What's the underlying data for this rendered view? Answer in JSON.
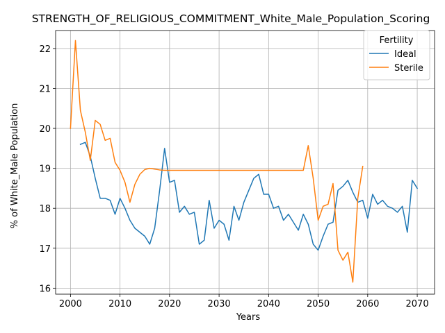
{
  "chart_data": {
    "type": "line",
    "title": "STRENGTH_OF_RELIGIOUS_COMMITMENT_White_Male_Population_Scoring",
    "xlabel": "Years",
    "ylabel": "% of White_Male Population",
    "xlim": [
      1997,
      2073.5
    ],
    "ylim": [
      15.85,
      22.45
    ],
    "xticks": [
      2000,
      2010,
      2020,
      2030,
      2040,
      2050,
      2060,
      2070
    ],
    "yticks": [
      16,
      17,
      18,
      19,
      20,
      21,
      22
    ],
    "grid": true,
    "legend": {
      "title": "Fertility",
      "position": "top-right"
    },
    "series": [
      {
        "name": "Ideal",
        "color": "#1f77b4",
        "x": [
          2002,
          2003,
          2004,
          2005,
          2006,
          2007,
          2008,
          2009,
          2010,
          2011,
          2012,
          2013,
          2014,
          2015,
          2016,
          2017,
          2018,
          2019,
          2020,
          2021,
          2022,
          2023,
          2024,
          2025,
          2026,
          2027,
          2028,
          2029,
          2030,
          2031,
          2032,
          2033,
          2034,
          2035,
          2036,
          2037,
          2038,
          2039,
          2040,
          2041,
          2042,
          2043,
          2044,
          2045,
          2046,
          2047,
          2048,
          2049,
          2050,
          2051,
          2052,
          2053,
          2054,
          2055,
          2056,
          2057,
          2058,
          2059,
          2060,
          2061,
          2062,
          2063,
          2064,
          2065,
          2066,
          2067,
          2068,
          2069,
          2070
        ],
        "y": [
          19.6,
          19.65,
          19.3,
          18.75,
          18.25,
          18.25,
          18.2,
          17.85,
          18.25,
          18.0,
          17.7,
          17.5,
          17.4,
          17.3,
          17.1,
          17.5,
          18.45,
          19.5,
          18.65,
          18.7,
          17.9,
          18.05,
          17.85,
          17.9,
          17.1,
          17.2,
          18.2,
          17.5,
          17.7,
          17.6,
          17.2,
          18.05,
          17.7,
          18.15,
          18.45,
          18.75,
          18.85,
          18.35,
          18.35,
          18.0,
          18.05,
          17.7,
          17.85,
          17.65,
          17.45,
          17.85,
          17.6,
          17.1,
          16.95,
          17.3,
          17.6,
          17.65,
          18.45,
          18.55,
          18.7,
          18.4,
          18.15,
          18.2,
          17.75,
          18.35,
          18.1,
          18.2,
          18.05,
          18.0,
          17.9,
          18.05,
          17.4,
          18.7,
          18.5
        ]
      },
      {
        "name": "Sterile",
        "color": "#ff7f0e",
        "x": [
          2000,
          2001,
          2002,
          2003,
          2004,
          2005,
          2006,
          2007,
          2008,
          2009,
          2010,
          2011,
          2012,
          2013,
          2014,
          2015,
          2016,
          2017,
          2018,
          2019,
          2020,
          2021,
          2022,
          2023,
          2024,
          2025,
          2026,
          2027,
          2028,
          2029,
          2030,
          2031,
          2032,
          2033,
          2034,
          2035,
          2036,
          2037,
          2038,
          2039,
          2040,
          2041,
          2042,
          2043,
          2044,
          2045,
          2046,
          2047,
          2048,
          2049,
          2050,
          2051,
          2052,
          2053,
          2054,
          2055,
          2056,
          2057,
          2058,
          2059
        ],
        "y": [
          20.0,
          22.2,
          20.45,
          19.9,
          19.2,
          20.2,
          20.1,
          19.7,
          19.75,
          19.15,
          18.95,
          18.65,
          18.15,
          18.6,
          18.85,
          18.97,
          19.0,
          18.98,
          18.96,
          18.95,
          18.95,
          18.95,
          18.95,
          18.95,
          18.95,
          18.95,
          18.95,
          18.95,
          18.95,
          18.95,
          18.95,
          18.95,
          18.95,
          18.95,
          18.95,
          18.95,
          18.95,
          18.95,
          18.95,
          18.95,
          18.95,
          18.95,
          18.95,
          18.95,
          18.95,
          18.95,
          18.95,
          18.95,
          19.57,
          18.75,
          17.7,
          18.05,
          18.1,
          18.62,
          16.95,
          16.7,
          16.9,
          16.15,
          18.25,
          19.05
        ]
      }
    ]
  }
}
